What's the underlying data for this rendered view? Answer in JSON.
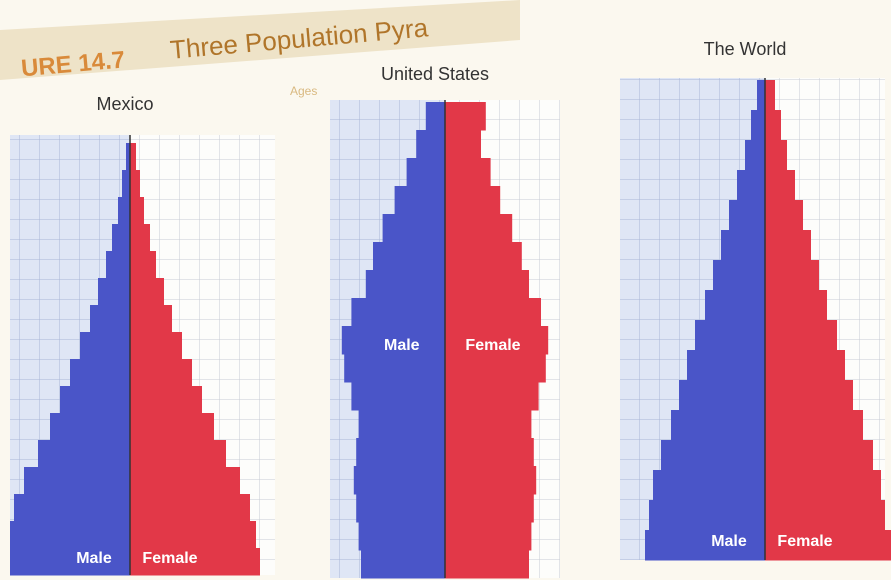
{
  "header": {
    "figure": "URE 14.7",
    "title": "Three Population Pyra"
  },
  "chart_data": [
    {
      "type": "pyramid",
      "title": "Mexico",
      "series": [
        {
          "name": "Male",
          "color": "#4a55c8",
          "values": [
            6,
            6,
            5.8,
            5.3,
            4.6,
            4,
            3.5,
            3,
            2.5,
            2,
            1.6,
            1.2,
            0.9,
            0.6,
            0.4,
            0.2
          ]
        },
        {
          "name": "Female",
          "color": "#e23848",
          "values": [
            6.5,
            6.3,
            6,
            5.5,
            4.8,
            4.2,
            3.6,
            3.1,
            2.6,
            2.1,
            1.7,
            1.3,
            1,
            0.7,
            0.5,
            0.3
          ]
        }
      ]
    },
    {
      "type": "pyramid",
      "title": "United States",
      "axis_label": "Ages",
      "series": [
        {
          "name": "Male",
          "color": "#4a55c8",
          "values": [
            3.5,
            3.6,
            3.7,
            3.8,
            3.7,
            3.6,
            3.9,
            4.2,
            4.3,
            3.9,
            3.3,
            3,
            2.6,
            2.1,
            1.6,
            1.2,
            0.8
          ]
        },
        {
          "name": "Female",
          "color": "#e23848",
          "values": [
            3.5,
            3.6,
            3.7,
            3.8,
            3.7,
            3.6,
            3.9,
            4.2,
            4.3,
            4,
            3.5,
            3.2,
            2.8,
            2.3,
            1.9,
            1.5,
            1.7
          ]
        }
      ]
    },
    {
      "type": "pyramid",
      "title": "The World",
      "series": [
        {
          "name": "Male",
          "color": "#4a55c8",
          "values": [
            6,
            5.8,
            5.6,
            5.2,
            4.7,
            4.3,
            3.9,
            3.5,
            3,
            2.6,
            2.2,
            1.8,
            1.4,
            1,
            0.7,
            0.4
          ]
        },
        {
          "name": "Female",
          "color": "#e23848",
          "values": [
            6.3,
            6,
            5.8,
            5.4,
            4.9,
            4.4,
            4,
            3.6,
            3.1,
            2.7,
            2.3,
            1.9,
            1.5,
            1.1,
            0.8,
            0.5
          ]
        }
      ]
    }
  ]
}
